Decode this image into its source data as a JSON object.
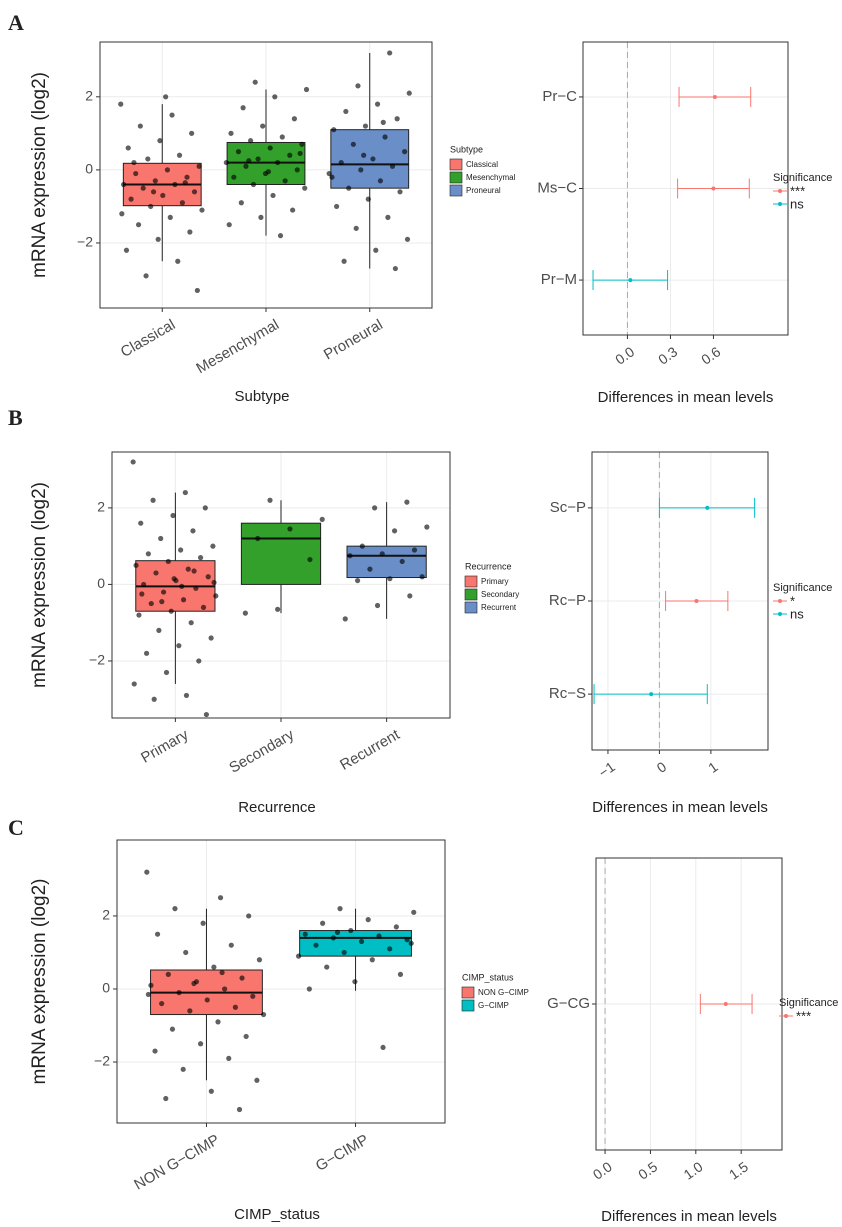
{
  "chart_data": [
    {
      "type": "box",
      "panel_label": "A",
      "y_label": "mRNA expression (log2)",
      "x_label": "Subtype",
      "ylim": [
        -3.78,
        3.5
      ],
      "yticks": [
        {
          "value": -2,
          "label": "−2"
        },
        0,
        2
      ],
      "grid": true,
      "legend_title": "Subtype",
      "categories": [
        "Classical",
        "Mesenchymal",
        "Proneural"
      ],
      "colors": [
        "#F8766D",
        "#33A02C",
        "#6A8FC8"
      ],
      "boxes": [
        {
          "whislo": -2.5,
          "q1": -0.98,
          "med": -0.4,
          "q3": 0.18,
          "whishi": 1.8
        },
        {
          "whislo": -1.8,
          "q1": -0.4,
          "med": 0.2,
          "q3": 0.75,
          "whishi": 2.2
        },
        {
          "whislo": -2.7,
          "q1": -0.5,
          "med": 0.15,
          "q3": 1.1,
          "whishi": 3.2
        }
      ],
      "points": [
        [
          1.8,
          1.5,
          1.2,
          1.0,
          0.8,
          0.6,
          0.4,
          0.3,
          0.1,
          0.0,
          -0.1,
          -0.2,
          -0.3,
          -0.4,
          -0.4,
          -0.5,
          -0.6,
          -0.7,
          -0.8,
          -0.9,
          -1.0,
          -1.1,
          -1.3,
          -1.5,
          -1.7,
          -1.9,
          -2.2,
          -2.5,
          -2.9,
          -3.3,
          2.0,
          0.2,
          -0.35,
          -0.6,
          -1.2
        ],
        [
          2.4,
          2.2,
          2.0,
          1.7,
          1.4,
          1.2,
          1.0,
          0.9,
          0.8,
          0.7,
          0.6,
          0.5,
          0.4,
          0.3,
          0.2,
          0.2,
          0.1,
          0.0,
          -0.1,
          -0.2,
          -0.3,
          -0.4,
          -0.5,
          -0.7,
          -0.9,
          -1.1,
          -1.3,
          -1.5,
          -1.8,
          0.25,
          0.45,
          -0.05
        ],
        [
          3.2,
          2.3,
          2.1,
          1.8,
          1.6,
          1.4,
          1.2,
          1.1,
          0.9,
          0.7,
          0.5,
          0.3,
          0.2,
          0.1,
          0.0,
          -0.1,
          -0.3,
          -0.5,
          -0.6,
          -0.8,
          -1.0,
          -1.3,
          -1.6,
          -1.9,
          -2.2,
          -2.5,
          -2.7,
          0.4,
          -0.2,
          1.3
        ]
      ]
    },
    {
      "type": "interval",
      "x_label": "Differences in mean levels",
      "xlim": [
        -0.31,
        1.12
      ],
      "xticks": [
        {
          "value": 0,
          "label": "0.0"
        },
        0.3,
        0.6
      ],
      "reference_line": 0,
      "grid": true,
      "categories": [
        "Pr−C",
        "Ms−C",
        "Pr−M"
      ],
      "estimates": [
        0.61,
        0.6,
        0.02
      ],
      "lower": [
        0.36,
        0.35,
        -0.24
      ],
      "upper": [
        0.86,
        0.85,
        0.28
      ],
      "significance": [
        "***",
        "***",
        "ns"
      ],
      "legend_title": "Significance",
      "legend": [
        {
          "label": "***",
          "color": "#F8766D"
        },
        {
          "label": "ns",
          "color": "#00BFC4"
        }
      ]
    },
    {
      "type": "box",
      "panel_label": "B",
      "y_label": "mRNA expression (log2)",
      "x_label": "Recurrence",
      "ylim": [
        -3.49,
        3.46
      ],
      "yticks": [
        {
          "value": -2,
          "label": "−2"
        },
        0,
        2
      ],
      "grid": true,
      "legend_title": "Recurrence",
      "categories": [
        "Primary",
        "Secondary",
        "Recurrent"
      ],
      "colors": [
        "#F8766D",
        "#33A02C",
        "#6A8FC8"
      ],
      "boxes": [
        {
          "whislo": -2.6,
          "q1": -0.7,
          "med": -0.05,
          "q3": 0.62,
          "whishi": 2.4
        },
        {
          "whislo": -0.75,
          "q1": 0,
          "med": 1.2,
          "q3": 1.6,
          "whishi": 2.2
        },
        {
          "whislo": -0.9,
          "q1": 0.18,
          "med": 0.75,
          "q3": 1.0,
          "whishi": 2.15
        }
      ],
      "points": [
        [
          3.2,
          2.4,
          2.2,
          2.0,
          1.8,
          1.6,
          1.4,
          1.2,
          1.0,
          0.9,
          0.8,
          0.7,
          0.6,
          0.5,
          0.4,
          0.3,
          0.2,
          0.1,
          0.0,
          -0.1,
          -0.2,
          -0.3,
          -0.4,
          -0.5,
          -0.6,
          -0.7,
          -0.8,
          -1.0,
          -1.2,
          -1.4,
          -1.6,
          -1.8,
          -2.0,
          -2.3,
          -2.6,
          -2.9,
          -3.0,
          -3.4,
          0.15,
          -0.25,
          0.35,
          -0.45,
          0.05,
          -0.05
        ],
        [
          2.2,
          1.7,
          1.45,
          1.2,
          0.65,
          -0.65,
          -0.75
        ],
        [
          2.15,
          2.0,
          1.5,
          1.4,
          1.0,
          0.9,
          0.8,
          0.75,
          0.6,
          0.4,
          0.2,
          0.15,
          0.1,
          -0.3,
          -0.55,
          -0.9
        ]
      ]
    },
    {
      "type": "interval",
      "x_label": "Differences in mean levels",
      "xlim": [
        -1.31,
        2.11
      ],
      "xticks": [
        {
          "value": -1,
          "label": "−1"
        },
        0,
        1
      ],
      "reference_line": 0,
      "grid": true,
      "categories": [
        "Sc−P",
        "Rc−P",
        "Rc−S"
      ],
      "estimates": [
        0.93,
        0.72,
        -0.16
      ],
      "lower": [
        0.0,
        0.12,
        -1.27
      ],
      "upper": [
        1.85,
        1.33,
        0.93
      ],
      "significance": [
        "ns",
        "*",
        "ns"
      ],
      "legend_title": "Significance",
      "legend": [
        {
          "label": "*",
          "color": "#F8766D"
        },
        {
          "label": "ns",
          "color": "#00BFC4"
        }
      ]
    },
    {
      "type": "box",
      "panel_label": "C",
      "y_label": "mRNA expression (log2)",
      "x_label": "CIMP_status",
      "ylim": [
        -3.67,
        4.08
      ],
      "yticks": [
        {
          "value": -2,
          "label": "−2"
        },
        0,
        2
      ],
      "grid": true,
      "legend_title": "CIMP_status",
      "categories": [
        "NON G−CIMP",
        "G−CIMP"
      ],
      "colors": [
        "#F8766D",
        "#00BFC4"
      ],
      "boxes": [
        {
          "whislo": -2.5,
          "q1": -0.7,
          "med": -0.1,
          "q3": 0.52,
          "whishi": 2.2
        },
        {
          "whislo": -0.05,
          "q1": 0.9,
          "med": 1.4,
          "q3": 1.6,
          "whishi": 2.2
        }
      ],
      "points": [
        [
          3.2,
          2.5,
          2.2,
          2.0,
          1.8,
          1.5,
          1.2,
          1.0,
          0.8,
          0.6,
          0.4,
          0.3,
          0.2,
          0.1,
          0.0,
          -0.1,
          -0.2,
          -0.3,
          -0.4,
          -0.5,
          -0.6,
          -0.7,
          -0.9,
          -1.1,
          -1.3,
          -1.5,
          -1.7,
          -1.9,
          -2.2,
          -2.5,
          -2.8,
          -3.0,
          -3.3,
          0.15,
          -0.15,
          0.45
        ],
        [
          2.2,
          2.1,
          1.9,
          1.8,
          1.7,
          1.6,
          1.5,
          1.45,
          1.4,
          1.35,
          1.3,
          1.2,
          1.1,
          1.0,
          0.9,
          0.8,
          0.6,
          0.4,
          0.2,
          0.0,
          -1.6,
          1.55,
          1.25
        ]
      ]
    },
    {
      "type": "interval",
      "x_label": "Differences in mean levels",
      "xlim": [
        -0.1,
        1.95
      ],
      "xticks": [
        {
          "value": 0,
          "label": "0.0"
        },
        0.5,
        {
          "value": 1,
          "label": "1.0"
        },
        1.5
      ],
      "reference_line": 0,
      "grid": true,
      "categories": [
        "G−CG"
      ],
      "estimates": [
        1.33
      ],
      "lower": [
        1.05
      ],
      "upper": [
        1.62
      ],
      "significance": [
        "***"
      ],
      "legend_title": "Significance",
      "legend": [
        {
          "label": "***",
          "color": "#F8766D"
        }
      ]
    }
  ]
}
